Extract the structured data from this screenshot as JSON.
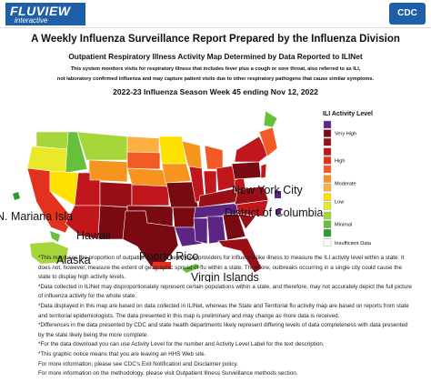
{
  "header": {
    "logo": "FLUVIEW",
    "logo_sub": "interactive",
    "agency": "CDC"
  },
  "titles": {
    "main": "A Weekly Influenza Surveillance Report Prepared by the Influenza Division",
    "map_title": "Outpatient Respiratory Illness Activity Map Determined by Data Reported to ILINet",
    "description": [
      "This system monitors visits for respiratory illness that includes fever plus a cough or sore throat, also referred to as ILI,",
      "not laboratory confirmed influenza and may capture patient visits due to other respiratory pathogens that cause similar symptoms."
    ],
    "season": "2022-23 Influenza Season Week 45 ending Nov 12, 2022"
  },
  "map": {
    "labels": {
      "new_york_city": "New York City",
      "district_of_columbia": "District of Columbia",
      "mariana": "N. Mariana Isla",
      "hawaii": "Hawaii",
      "alaska": "Alaska",
      "puerto_rico": "Puerto Rico",
      "virgin_islands": "Virgin Islands"
    }
  },
  "legend": {
    "title": "ILI Activity Level",
    "groups": [
      {
        "label": "Very High",
        "colors": [
          "#5c2483",
          "#7a0a12",
          "#990f16"
        ]
      },
      {
        "label": "High",
        "colors": [
          "#c1161c",
          "#e2311d",
          "#f15a24"
        ]
      },
      {
        "label": "Moderate",
        "colors": [
          "#f7941d",
          "#fbb040"
        ]
      },
      {
        "label": "Low",
        "colors": [
          "#ffe100",
          "#e9e92a"
        ]
      },
      {
        "label": "Minimal",
        "colors": [
          "#a6d63a",
          "#66c03a",
          "#2f9a2f"
        ]
      },
      {
        "label": "Insufficient Data",
        "colors": [
          "#ffffff"
        ]
      }
    ]
  },
  "notes": [
    "*This map uses the proportion of outpatient visits to healthcare providers for influenza-like illness to measure the ILI activity level within a state. It does not, however, measure the extent of geographic spread of flu within a state. Therefore, outbreaks occurring in a single city could cause the state to display high activity levels.",
    "*Data collected in ILINet may disproportionately represent certain populations within a state, and therefore, may not accurately depict the full picture of influenza activity for the whole state.",
    "*Data displayed in this map are based on data collected in ILINet, whereas the State and Territorial flu activity map are based on reports from state and territorial epidemiologists. The data presented in this map is preliminary and may change as more data is received.",
    "*Differences in the data presented by CDC and state health departments likely represent differing levels of data completeness with data presented by the state likely being the more complete.",
    "*For the data download you can use Activity Level for the number and Activity Level Label for the text description.",
    "*This graphic notice means that you are leaving an HHS Web site.",
    "For more information, please see CDC's Exit Notification and Disclaimer policy.",
    "For more information on the methodology, please visit Outpatient Illness Surveillance methods section."
  ]
}
